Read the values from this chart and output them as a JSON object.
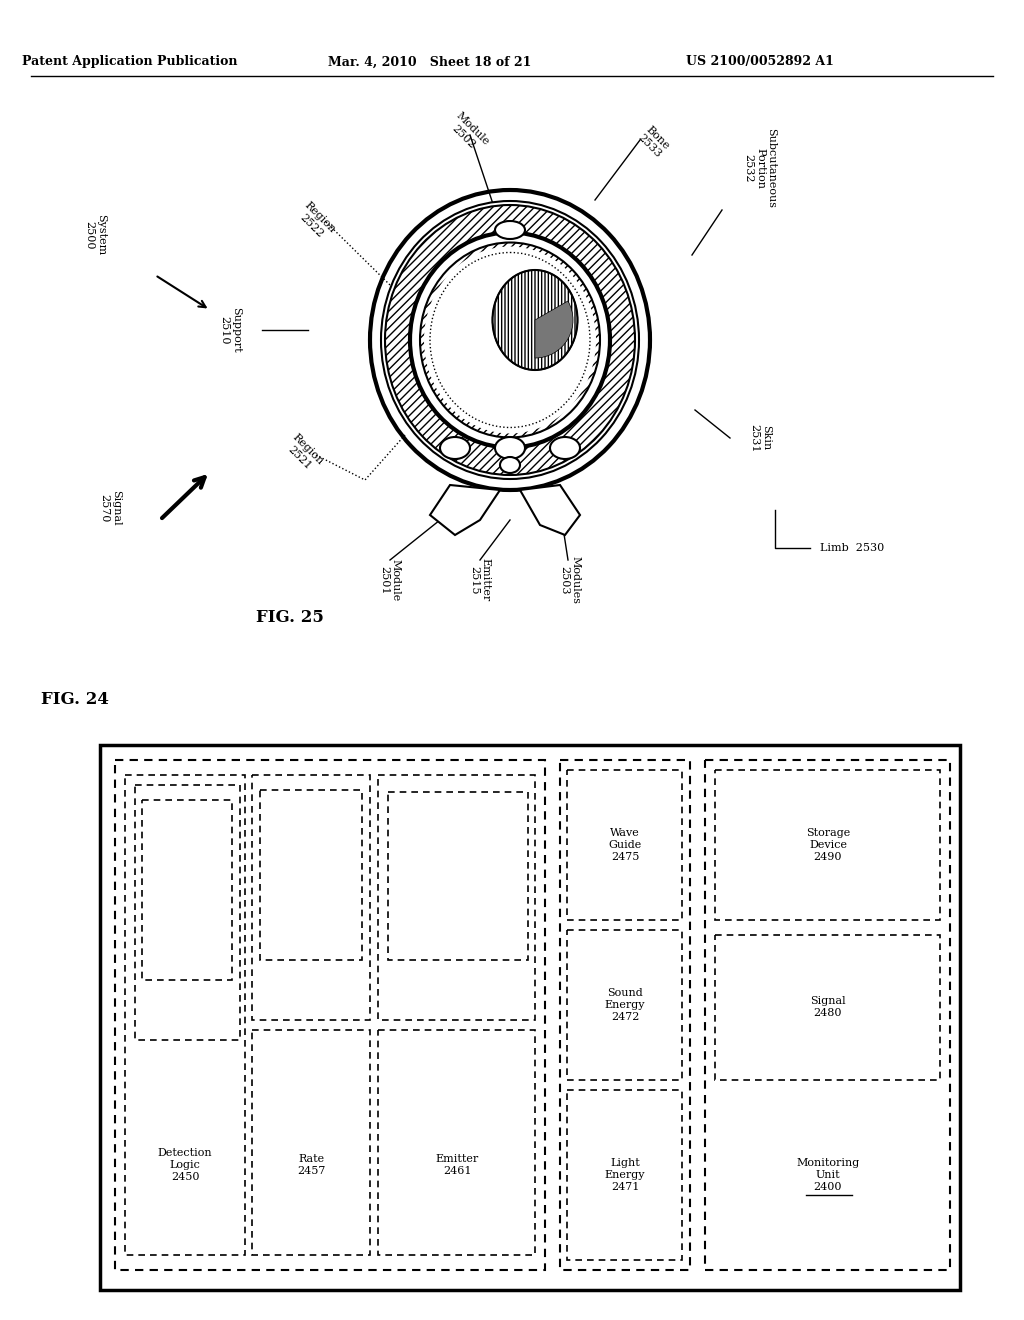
{
  "header_left": "Patent Application Publication",
  "header_center": "Mar. 4, 2010   Sheet 18 of 21",
  "header_right": "US 2100/0052892 A1",
  "bg_color": "#ffffff",
  "line_color": "#000000"
}
